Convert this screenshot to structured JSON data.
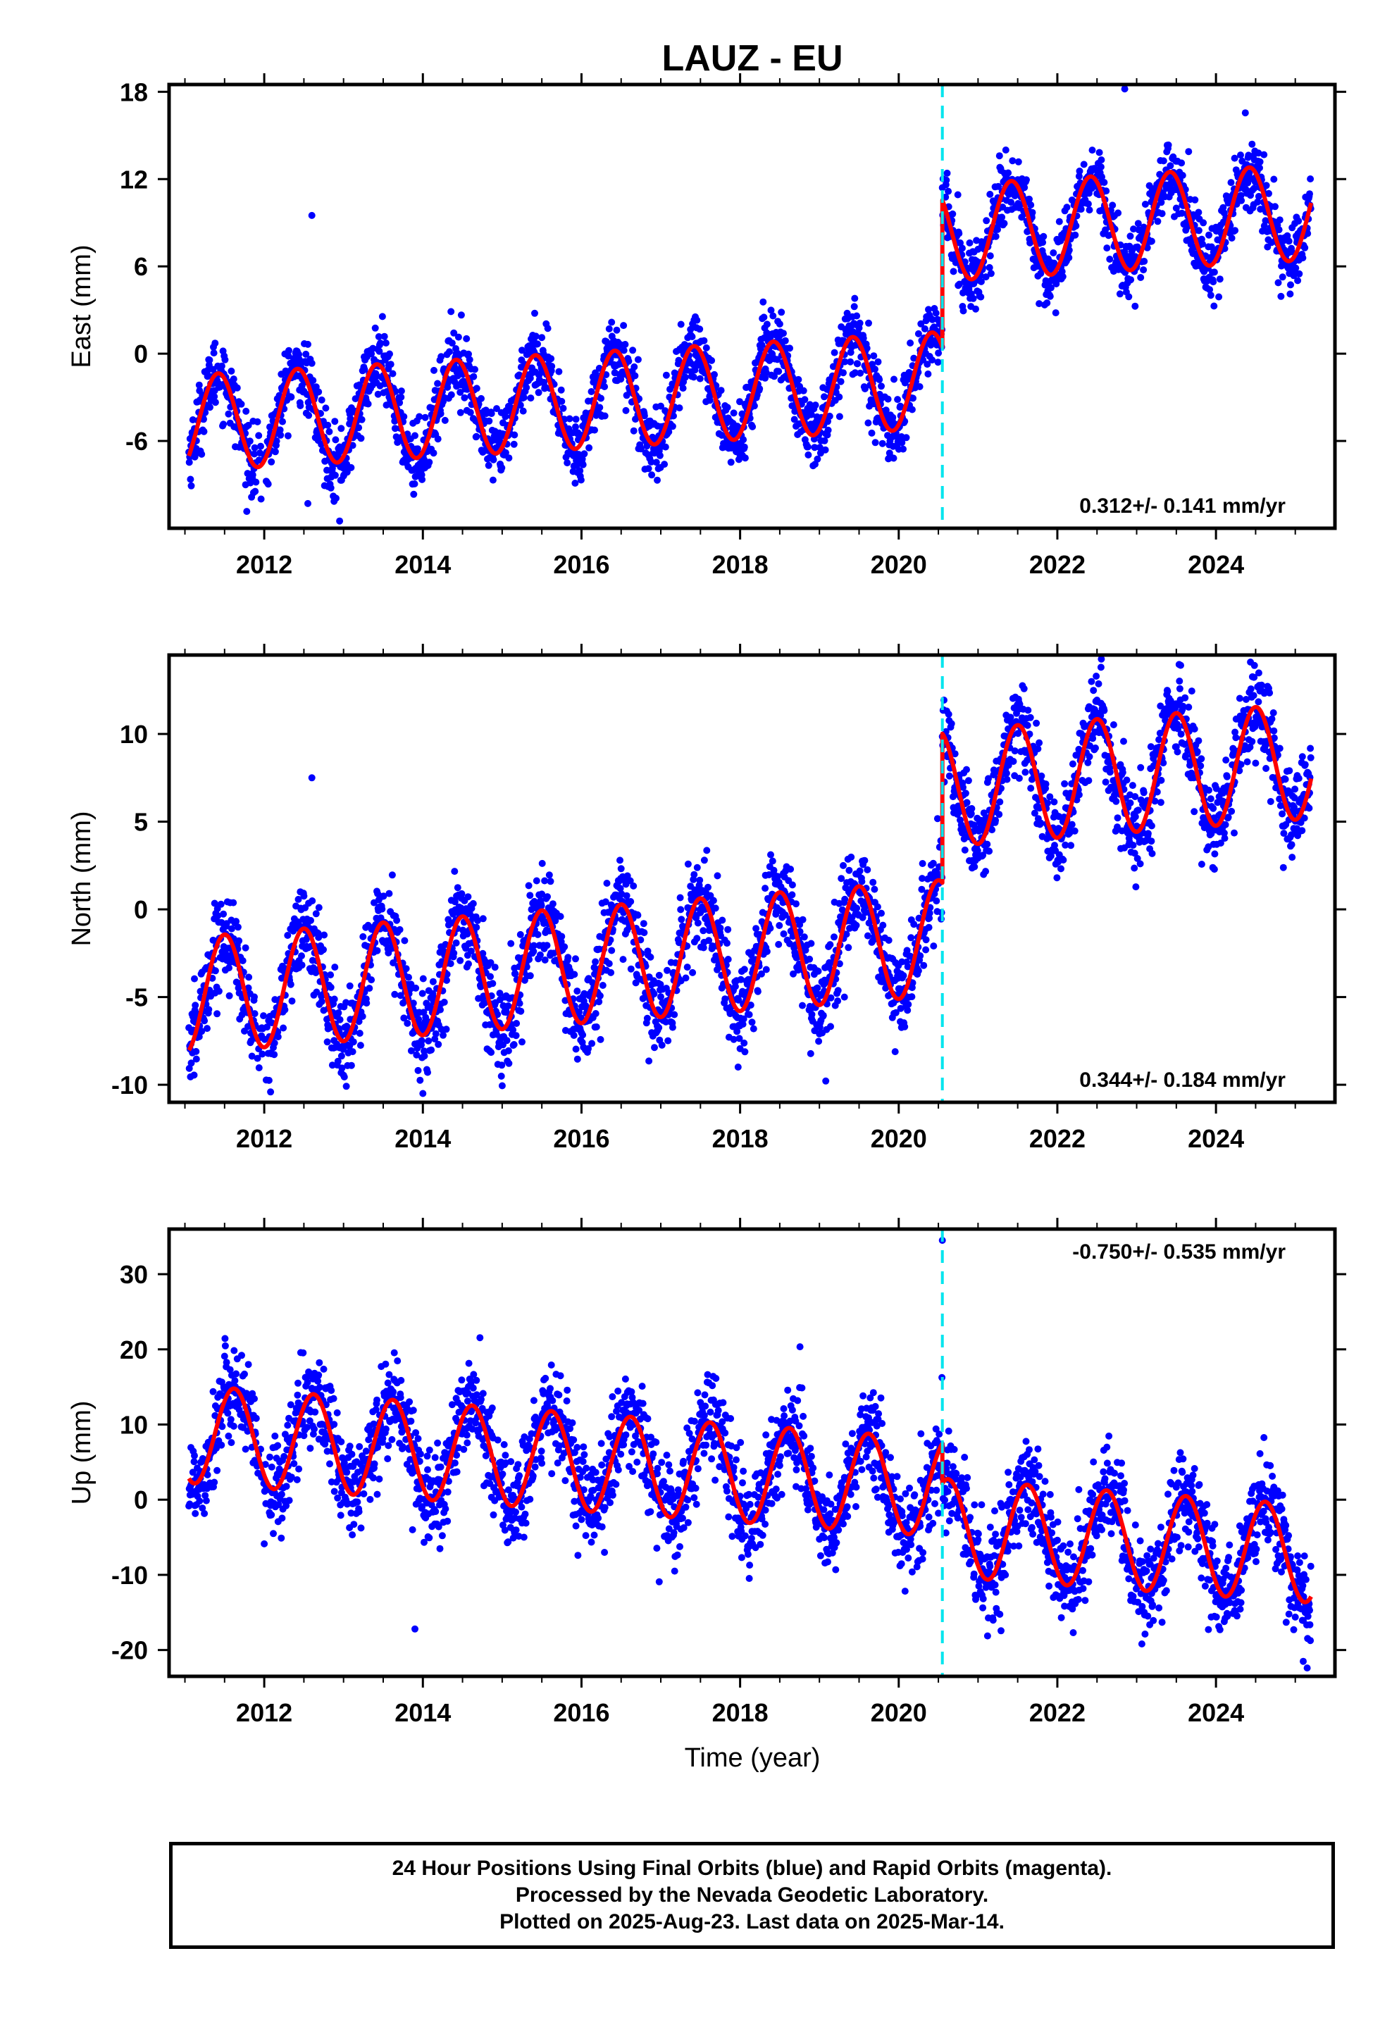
{
  "title": "LAUZ - EU",
  "chart_data": {
    "type": "scatter",
    "x_label": "Time (year)",
    "x_range": [
      2010.8,
      2025.5
    ],
    "x_ticks": [
      "2012",
      "2014",
      "2016",
      "2018",
      "2020",
      "2022",
      "2024"
    ],
    "x_tick_values": [
      2012,
      2014,
      2016,
      2018,
      2020,
      2022,
      2024
    ],
    "x_minor_tick_step": 0.5,
    "offset_epoch": 2020.55,
    "colors": {
      "data_points": "#0000ff",
      "model_fit": "#ff0000",
      "offset_marker": "#00e5ee"
    },
    "series_note_points": "24 hour positions, blue dots",
    "panels": [
      {
        "id": "east",
        "ylabel": "East (mm)",
        "ylim": [
          -12,
          18.5
        ],
        "y_ticks": [
          "-6",
          "0",
          "6",
          "12",
          "18"
        ],
        "y_tick_values": [
          -6,
          0,
          6,
          12,
          18
        ],
        "rate_label": "0.312+/- 0.141 mm/yr",
        "rate_position": "bottom-right",
        "model": {
          "pre_mean": -2.6,
          "post_mean": 7.5,
          "trend": 0.312,
          "amplitude": 3.3,
          "peak_phase": 0.42
        },
        "point_scatter": 1.2,
        "outliers": [
          [
            2012.6,
            9.5
          ],
          [
            2022.85,
            18.2
          ],
          [
            2012.55,
            -10.3
          ],
          [
            2012.95,
            -11.5
          ]
        ]
      },
      {
        "id": "north",
        "ylabel": "North (mm)",
        "ylim": [
          -11,
          14.5
        ],
        "y_ticks": [
          "-10",
          "-5",
          "0",
          "5",
          "10"
        ],
        "y_tick_values": [
          -10,
          -5,
          0,
          5,
          10
        ],
        "rate_label": "0.344+/- 0.184 mm/yr",
        "rate_position": "bottom-right",
        "model": {
          "pre_mean": -2.5,
          "post_mean": 6.0,
          "trend": 0.344,
          "amplitude": 3.3,
          "peak_phase": 0.5
        },
        "point_scatter": 1.3,
        "outliers": [
          [
            2012.6,
            7.5
          ],
          [
            2014.0,
            -10.5
          ],
          [
            2022.55,
            13.8
          ]
        ]
      },
      {
        "id": "up",
        "ylabel": "Up (mm)",
        "ylim": [
          -23.5,
          36
        ],
        "y_ticks": [
          "-20",
          "-10",
          "0",
          "10",
          "20",
          "30"
        ],
        "y_tick_values": [
          -20,
          -10,
          0,
          10,
          20,
          30
        ],
        "rate_label": "-0.750+/- 0.535 mm/yr",
        "rate_position": "top-right",
        "model": {
          "pre_mean": 3.5,
          "post_mean": -1.8,
          "trend": -0.75,
          "amplitude": 6.5,
          "peak_phase": 0.62
        },
        "point_scatter": 3.2,
        "outliers": [
          [
            2020.55,
            34.5
          ],
          [
            2013.9,
            -17.2
          ],
          [
            2025.1,
            -21.5
          ]
        ]
      }
    ]
  },
  "footer": {
    "line1": "24 Hour Positions Using Final Orbits (blue) and Rapid Orbits (magenta).",
    "line2": "Processed by the Nevada Geodetic Laboratory.",
    "line3": "Plotted on 2025-Aug-23. Last data on 2025-Mar-14."
  }
}
